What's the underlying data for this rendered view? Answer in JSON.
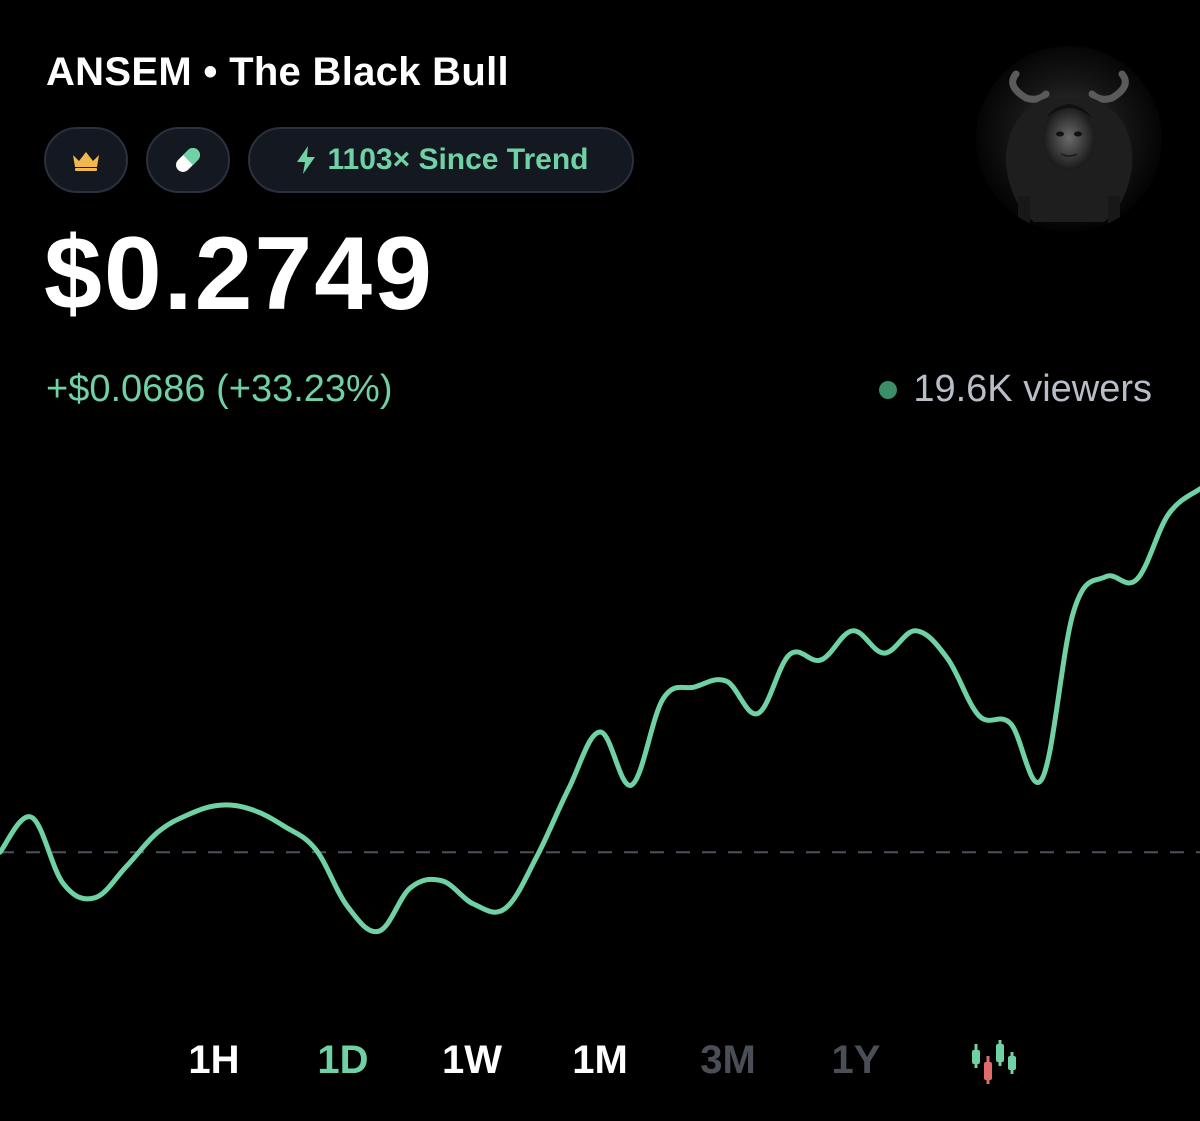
{
  "header": {
    "title": "ANSEM • The Black Bull"
  },
  "badges": {
    "crown_icon": "crown-icon",
    "pill_icon": "pill-icon",
    "trend_icon": "lightning-icon",
    "trend_label": "1103× Since Trend"
  },
  "price": {
    "current": "$0.2749",
    "change": "+$0.0686 (+33.23%)"
  },
  "viewers": {
    "label": "19.6K viewers",
    "status_color": "#3a8e68"
  },
  "timeframes": [
    {
      "label": "1H",
      "state": "active-available"
    },
    {
      "label": "1D",
      "state": "selected"
    },
    {
      "label": "1W",
      "state": "available"
    },
    {
      "label": "1M",
      "state": "available"
    },
    {
      "label": "3M",
      "state": "disabled"
    },
    {
      "label": "1Y",
      "state": "disabled"
    }
  ],
  "chart_toggle_icon": "candlestick-icon",
  "colors": {
    "accent": "#6fd1a4",
    "background": "#000000",
    "chip_bg": "#131821",
    "disabled": "#4a4f57",
    "baseline": "#4a5060"
  },
  "chart_data": {
    "type": "line",
    "baseline_style": "dashed",
    "grid": false,
    "series": [
      {
        "values": [
          0.2063,
          0.2129,
          0.2004,
          0.1977,
          0.2036,
          0.2101,
          0.2135,
          0.2152,
          0.2143,
          0.2112,
          0.2068,
          0.1961,
          0.1914,
          0.1996,
          0.2009,
          0.1965,
          0.1957,
          0.2055,
          0.2182,
          0.229,
          0.219,
          0.2353,
          0.2375,
          0.2386,
          0.2325,
          0.2436,
          0.2426,
          0.2481,
          0.2439,
          0.2481,
          0.2429,
          0.2321,
          0.2306,
          0.2202,
          0.2518,
          0.2583,
          0.2578,
          0.2701,
          0.2749
        ]
      }
    ]
  }
}
